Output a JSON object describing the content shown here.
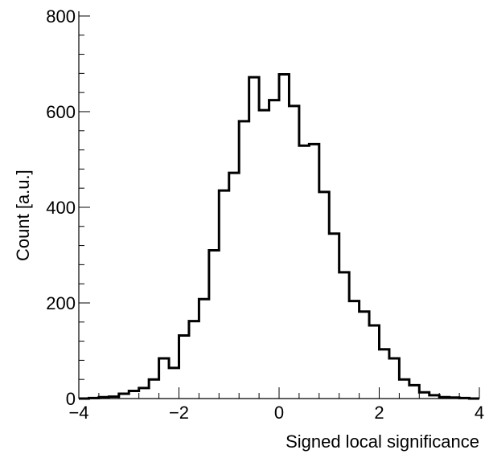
{
  "chart_data": {
    "type": "histogram",
    "xlabel": "Signed local significance",
    "ylabel": "Count [a.u.]",
    "xlim": [
      -4,
      4
    ],
    "ylim": [
      0,
      810
    ],
    "bin_width": 0.2,
    "bin_edges_start": -4.0,
    "counts": [
      0,
      1,
      3,
      4,
      10,
      16,
      22,
      40,
      84,
      64,
      132,
      162,
      208,
      310,
      435,
      472,
      580,
      672,
      603,
      624,
      678,
      612,
      529,
      532,
      432,
      345,
      264,
      204,
      182,
      153,
      103,
      84,
      40,
      28,
      13,
      7,
      3,
      2,
      1,
      0
    ],
    "x_ticks": [
      {
        "value": -4,
        "label": "−4"
      },
      {
        "value": -2,
        "label": "−2"
      },
      {
        "value": 0,
        "label": "0"
      },
      {
        "value": 2,
        "label": "2"
      },
      {
        "value": 4,
        "label": "4"
      }
    ],
    "y_ticks": [
      {
        "value": 0,
        "label": "0"
      },
      {
        "value": 200,
        "label": "200"
      },
      {
        "value": 400,
        "label": "400"
      },
      {
        "value": 600,
        "label": "600"
      },
      {
        "value": 800,
        "label": "800"
      }
    ],
    "line_color": "#000000",
    "grid": false,
    "legend": "none"
  }
}
